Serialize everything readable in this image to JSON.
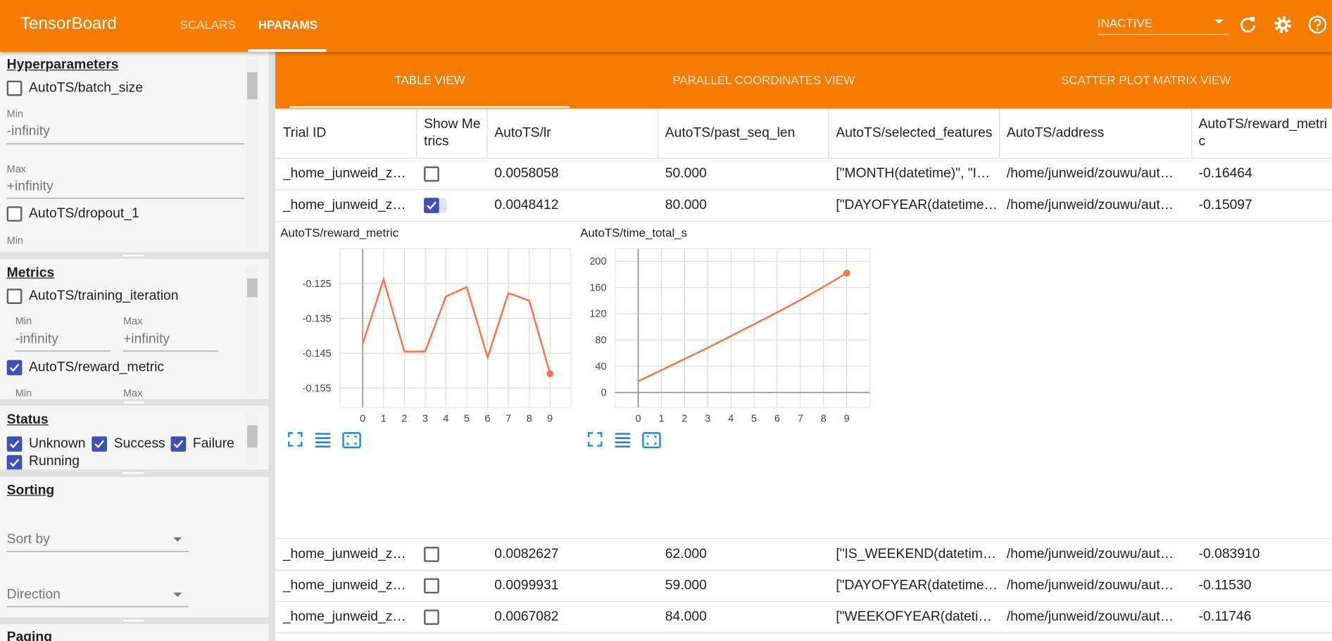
{
  "header": {
    "title": "TensorBoard",
    "tabs": [
      "SCALARS",
      "HPARAMS"
    ],
    "run_select": "INACTIVE"
  },
  "sidebar": {
    "hyperparameters": {
      "title": "Hyperparameters",
      "items": [
        {
          "label": "AutoTS/batch_size",
          "checked": false,
          "min_label": "Min",
          "min": "-infinity",
          "max_label": "Max",
          "max": "+infinity"
        },
        {
          "label": "AutoTS/dropout_1",
          "checked": false,
          "min_label": "Min"
        }
      ]
    },
    "metrics": {
      "title": "Metrics",
      "items": [
        {
          "label": "AutoTS/training_iteration",
          "checked": false,
          "min_label": "Min",
          "min": "-infinity",
          "max_label": "Max",
          "max": "+infinity"
        },
        {
          "label": "AutoTS/reward_metric",
          "checked": true,
          "min_label": "Min",
          "max_label": "Max"
        }
      ]
    },
    "status": {
      "title": "Status",
      "items": [
        {
          "label": "Unknown",
          "checked": true
        },
        {
          "label": "Success",
          "checked": true
        },
        {
          "label": "Failure",
          "checked": true
        },
        {
          "label": "Running",
          "checked": true
        }
      ]
    },
    "sorting": {
      "title": "Sorting",
      "sort_by": "Sort by",
      "direction": "Direction"
    },
    "paging": {
      "title": "Paging"
    }
  },
  "view_tabs": [
    "TABLE VIEW",
    "PARALLEL COORDINATES VIEW",
    "SCATTER PLOT MATRIX VIEW"
  ],
  "table": {
    "headers": [
      "Trial ID",
      "Show Metrics",
      "AutoTS/lr",
      "AutoTS/past_seq_len",
      "AutoTS/selected_features",
      "AutoTS/address",
      "AutoTS/reward_metric"
    ],
    "rows": [
      [
        "_home_junweid_z…",
        false,
        "0.0058058",
        "50.000",
        "[\"MONTH(datetime)\", \"I…",
        "/home/junweid/zouwu/aut…",
        "-0.16464"
      ],
      [
        "_home_junweid_z…",
        true,
        "0.0048412",
        "80.000",
        "[\"DAYOFYEAR(datetime…",
        "/home/junweid/zouwu/aut…",
        "-0.15097"
      ],
      [
        "_home_junweid_z…",
        false,
        "0.0082627",
        "62.000",
        "[\"IS_WEEKEND(datetim…",
        "/home/junweid/zouwu/aut…",
        "-0.083910"
      ],
      [
        "_home_junweid_z…",
        false,
        "0.0099931",
        "59.000",
        "[\"DAYOFYEAR(datetime…",
        "/home/junweid/zouwu/aut…",
        "-0.11530"
      ],
      [
        "_home_junweid_z…",
        false,
        "0.0067082",
        "84.000",
        "[\"WEEKOFYEAR(dateti…",
        "/home/junweid/zouwu/aut…",
        "-0.11746"
      ]
    ]
  },
  "chart_data": [
    {
      "type": "line",
      "title": "AutoTS/reward_metric",
      "color": "#ff7043",
      "grid": true,
      "x": [
        0,
        1,
        2,
        3,
        4,
        5,
        6,
        7,
        8,
        9
      ],
      "values": [
        -0.1423,
        -0.1238,
        -0.1445,
        -0.1445,
        -0.1287,
        -0.126,
        -0.1462,
        -0.1277,
        -0.1299,
        -0.1509
      ],
      "xlim": [
        -1.1,
        10
      ],
      "ylim": [
        -0.1606,
        -0.115
      ],
      "xticks": [
        0,
        1,
        2,
        3,
        4,
        5,
        6,
        7,
        8,
        9
      ],
      "yticks": [
        -0.125,
        -0.135,
        -0.145,
        -0.155
      ]
    },
    {
      "type": "line",
      "title": "AutoTS/time_total_s",
      "color": "#ff7043",
      "grid": true,
      "x": [
        0,
        1,
        2,
        3,
        4,
        5,
        6,
        7,
        8,
        9
      ],
      "values": [
        17,
        34,
        51,
        68,
        86,
        104,
        122,
        141,
        161,
        182
      ],
      "xlim": [
        -1,
        10
      ],
      "ylim": [
        -23,
        219
      ],
      "xticks": [
        0,
        1,
        2,
        3,
        4,
        5,
        6,
        7,
        8,
        9
      ],
      "yticks": [
        0,
        40,
        80,
        120,
        160,
        200
      ]
    }
  ]
}
